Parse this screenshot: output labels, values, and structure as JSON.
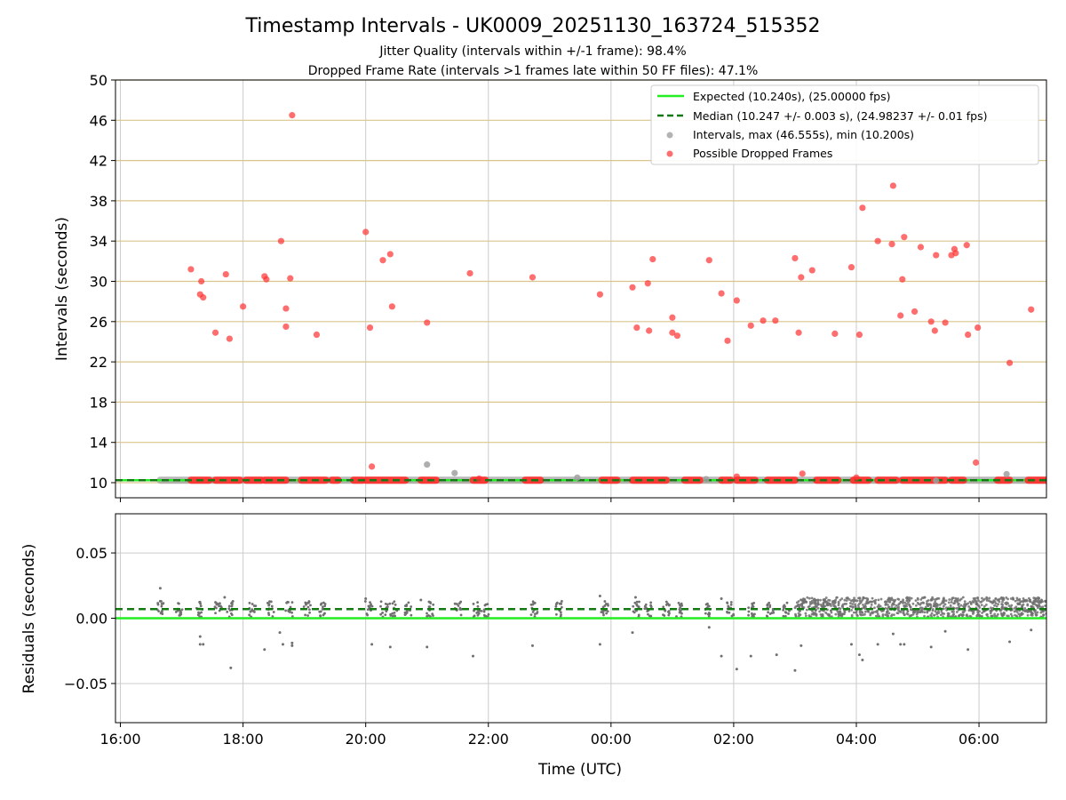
{
  "title": "Timestamp Intervals - UK0009_20251130_163724_515352",
  "subtitle1": "Jitter Quality (intervals within +/-1 frame): 98.4%",
  "subtitle2": "Dropped Frame Rate (intervals >1 frames late within 50 FF files): 47.1%",
  "colors": {
    "expected": "#22ee22",
    "median": "#137a13",
    "intervals": "#a0a0a0",
    "dropped": "#ff3030",
    "residual_points": "#707070",
    "tan_grid": "#d8c68c",
    "grid": "#cccccc"
  },
  "chart_data": [
    {
      "type": "scatter",
      "name": "intervals",
      "ylabel": "Intervals (seconds)",
      "ylim": [
        8.5,
        50
      ],
      "yticks": [
        10,
        14,
        18,
        22,
        26,
        30,
        34,
        38,
        42,
        46,
        50
      ],
      "xlim_hours": [
        -0.08,
        15.1
      ],
      "xticks_hours": [
        0,
        2,
        4,
        6,
        8,
        10,
        12,
        14
      ],
      "legend": {
        "position": "top-right",
        "expected": "Expected (10.240s), (25.00000 fps)",
        "median": "Median (10.247 +/- 0.003 s), (24.98237 +/- 0.01 fps)",
        "intervals": "Intervals, max (46.555s), min (10.200s)",
        "dropped": "Possible Dropped Frames"
      },
      "expected_value": 10.24,
      "median_value": 10.247,
      "baseline_segments_hours": [
        [
          0.65,
          15.1
        ]
      ],
      "dropped_baseline_segments_hours": [
        [
          1.15,
          1.45
        ],
        [
          1.55,
          1.95
        ],
        [
          2.05,
          2.3
        ],
        [
          2.35,
          2.7
        ],
        [
          2.95,
          3.35
        ],
        [
          3.45,
          3.55
        ],
        [
          3.8,
          3.95
        ],
        [
          4.0,
          4.65
        ],
        [
          4.9,
          5.15
        ],
        [
          5.75,
          5.95
        ],
        [
          6.6,
          6.85
        ],
        [
          7.85,
          8.1
        ],
        [
          8.35,
          8.9
        ],
        [
          9.2,
          9.45
        ],
        [
          9.8,
          9.95
        ],
        [
          10.05,
          10.35
        ],
        [
          10.55,
          11.0
        ],
        [
          11.35,
          11.7
        ],
        [
          11.95,
          12.2
        ],
        [
          12.35,
          12.65
        ],
        [
          12.75,
          13.45
        ],
        [
          13.55,
          13.75
        ],
        [
          14.3,
          14.5
        ],
        [
          14.8,
          15.1
        ]
      ],
      "intervals_points": [
        {
          "x": 5.0,
          "y": 11.8
        },
        {
          "x": 5.45,
          "y": 10.95
        },
        {
          "x": 7.45,
          "y": 10.5
        },
        {
          "x": 9.55,
          "y": 10.35
        },
        {
          "x": 13.3,
          "y": 10.2
        },
        {
          "x": 14.45,
          "y": 10.85
        }
      ],
      "dropped_points": [
        {
          "x": 1.15,
          "y": 31.2
        },
        {
          "x": 1.3,
          "y": 28.7
        },
        {
          "x": 1.32,
          "y": 30.0
        },
        {
          "x": 1.35,
          "y": 28.4
        },
        {
          "x": 1.55,
          "y": 24.9
        },
        {
          "x": 1.72,
          "y": 30.7
        },
        {
          "x": 1.78,
          "y": 24.3
        },
        {
          "x": 2.0,
          "y": 27.5
        },
        {
          "x": 2.35,
          "y": 30.5
        },
        {
          "x": 2.38,
          "y": 30.2
        },
        {
          "x": 2.62,
          "y": 34.0
        },
        {
          "x": 2.7,
          "y": 27.3
        },
        {
          "x": 2.7,
          "y": 25.5
        },
        {
          "x": 2.77,
          "y": 30.3
        },
        {
          "x": 2.8,
          "y": 46.5
        },
        {
          "x": 3.2,
          "y": 24.7
        },
        {
          "x": 4.0,
          "y": 34.9
        },
        {
          "x": 4.07,
          "y": 25.4
        },
        {
          "x": 4.1,
          "y": 11.6
        },
        {
          "x": 4.28,
          "y": 32.1
        },
        {
          "x": 4.4,
          "y": 32.7
        },
        {
          "x": 4.43,
          "y": 27.5
        },
        {
          "x": 5.0,
          "y": 25.9
        },
        {
          "x": 5.7,
          "y": 30.8
        },
        {
          "x": 5.85,
          "y": 10.4
        },
        {
          "x": 6.72,
          "y": 30.4
        },
        {
          "x": 7.82,
          "y": 28.7
        },
        {
          "x": 8.35,
          "y": 29.4
        },
        {
          "x": 8.42,
          "y": 25.4
        },
        {
          "x": 8.6,
          "y": 29.8
        },
        {
          "x": 8.62,
          "y": 25.1
        },
        {
          "x": 8.68,
          "y": 32.2
        },
        {
          "x": 9.0,
          "y": 26.4
        },
        {
          "x": 9.0,
          "y": 24.9
        },
        {
          "x": 9.08,
          "y": 24.6
        },
        {
          "x": 9.6,
          "y": 32.1
        },
        {
          "x": 9.8,
          "y": 28.8
        },
        {
          "x": 9.9,
          "y": 24.1
        },
        {
          "x": 10.05,
          "y": 28.1
        },
        {
          "x": 10.05,
          "y": 10.6
        },
        {
          "x": 10.28,
          "y": 25.6
        },
        {
          "x": 10.48,
          "y": 26.1
        },
        {
          "x": 10.68,
          "y": 26.1
        },
        {
          "x": 11.0,
          "y": 32.3
        },
        {
          "x": 11.06,
          "y": 24.9
        },
        {
          "x": 11.1,
          "y": 30.4
        },
        {
          "x": 11.12,
          "y": 10.9
        },
        {
          "x": 11.28,
          "y": 31.1
        },
        {
          "x": 11.65,
          "y": 24.8
        },
        {
          "x": 11.92,
          "y": 31.4
        },
        {
          "x": 12.05,
          "y": 24.7
        },
        {
          "x": 12.1,
          "y": 37.3
        },
        {
          "x": 12.0,
          "y": 10.5
        },
        {
          "x": 12.35,
          "y": 34.0
        },
        {
          "x": 12.58,
          "y": 33.7
        },
        {
          "x": 12.6,
          "y": 39.5
        },
        {
          "x": 12.72,
          "y": 26.6
        },
        {
          "x": 12.75,
          "y": 30.2
        },
        {
          "x": 12.78,
          "y": 34.4
        },
        {
          "x": 12.95,
          "y": 27.0
        },
        {
          "x": 13.05,
          "y": 33.4
        },
        {
          "x": 13.22,
          "y": 26.0
        },
        {
          "x": 13.28,
          "y": 25.1
        },
        {
          "x": 13.3,
          "y": 32.6
        },
        {
          "x": 13.45,
          "y": 25.9
        },
        {
          "x": 13.55,
          "y": 32.6
        },
        {
          "x": 13.6,
          "y": 33.2
        },
        {
          "x": 13.62,
          "y": 32.8
        },
        {
          "x": 13.8,
          "y": 33.6
        },
        {
          "x": 13.82,
          "y": 24.7
        },
        {
          "x": 13.95,
          "y": 12.0
        },
        {
          "x": 13.98,
          "y": 25.4
        },
        {
          "x": 14.5,
          "y": 21.9
        },
        {
          "x": 14.85,
          "y": 27.2
        }
      ]
    },
    {
      "type": "scatter",
      "name": "residuals",
      "xlabel": "Time (UTC)",
      "ylabel": "Residuals (seconds)",
      "ylim": [
        -0.08,
        0.08
      ],
      "yticks": [
        0.05,
        0.0,
        -0.05
      ],
      "yticklabels": [
        "0.05",
        "0.00",
        "−0.05"
      ],
      "xlim_hours": [
        -0.08,
        15.1
      ],
      "xticks_hours": [
        0,
        2,
        4,
        6,
        8,
        10,
        12,
        14
      ],
      "xticklabels": [
        "16:00",
        "18:00",
        "20:00",
        "22:00",
        "00:00",
        "02:00",
        "04:00",
        "06:00"
      ],
      "expected_residual": 0.0,
      "median_residual": 0.007,
      "residual_clusters_hours": [
        0.65,
        0.95,
        1.3,
        1.6,
        1.8,
        2.15,
        2.45,
        2.75,
        3.05,
        3.3,
        4.05,
        4.3,
        4.45,
        4.7,
        5.05,
        5.5,
        5.8,
        5.95,
        6.75,
        7.15,
        7.9,
        8.4,
        8.6,
        8.9,
        9.1,
        9.6,
        9.95,
        10.3,
        10.6,
        10.85
      ],
      "dense_band_hours": [
        11.0,
        15.1
      ],
      "residual_outliers": [
        {
          "x": 0.65,
          "y": 0.023
        },
        {
          "x": 1.3,
          "y": -0.014
        },
        {
          "x": 1.3,
          "y": -0.02
        },
        {
          "x": 1.35,
          "y": -0.02
        },
        {
          "x": 1.8,
          "y": -0.038
        },
        {
          "x": 2.35,
          "y": -0.024
        },
        {
          "x": 2.6,
          "y": -0.011
        },
        {
          "x": 2.65,
          "y": -0.02
        },
        {
          "x": 2.8,
          "y": -0.019
        },
        {
          "x": 2.8,
          "y": -0.021
        },
        {
          "x": 4.1,
          "y": -0.02
        },
        {
          "x": 4.4,
          "y": -0.022
        },
        {
          "x": 5.0,
          "y": -0.022
        },
        {
          "x": 5.75,
          "y": -0.029
        },
        {
          "x": 6.72,
          "y": -0.021
        },
        {
          "x": 7.82,
          "y": -0.02
        },
        {
          "x": 8.35,
          "y": -0.011
        },
        {
          "x": 9.6,
          "y": -0.007
        },
        {
          "x": 9.8,
          "y": -0.029
        },
        {
          "x": 10.05,
          "y": -0.039
        },
        {
          "x": 10.28,
          "y": -0.029
        },
        {
          "x": 10.7,
          "y": -0.028
        },
        {
          "x": 11.0,
          "y": -0.04
        },
        {
          "x": 11.1,
          "y": -0.021
        },
        {
          "x": 11.92,
          "y": -0.02
        },
        {
          "x": 12.05,
          "y": -0.028
        },
        {
          "x": 12.1,
          "y": -0.032
        },
        {
          "x": 12.35,
          "y": -0.02
        },
        {
          "x": 12.6,
          "y": -0.012
        },
        {
          "x": 12.72,
          "y": -0.02
        },
        {
          "x": 12.78,
          "y": -0.02
        },
        {
          "x": 13.22,
          "y": -0.022
        },
        {
          "x": 13.45,
          "y": -0.01
        },
        {
          "x": 13.82,
          "y": -0.024
        },
        {
          "x": 14.5,
          "y": -0.018
        },
        {
          "x": 14.85,
          "y": -0.009
        },
        {
          "x": 0.65,
          "y": 0.013
        },
        {
          "x": 1.7,
          "y": 0.016
        },
        {
          "x": 4.0,
          "y": 0.015
        },
        {
          "x": 4.9,
          "y": 0.014
        },
        {
          "x": 7.82,
          "y": 0.017
        },
        {
          "x": 8.4,
          "y": 0.016
        },
        {
          "x": 9.8,
          "y": 0.015
        }
      ]
    }
  ]
}
